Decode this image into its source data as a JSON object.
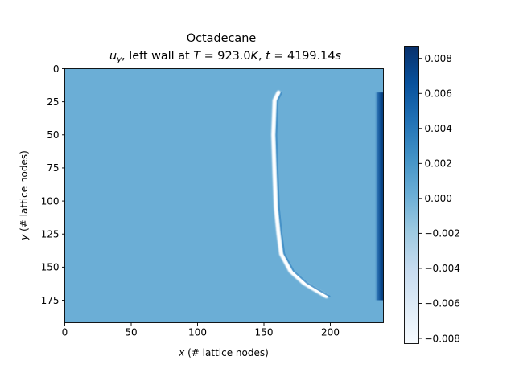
{
  "chart_data": {
    "type": "heatmap",
    "title_line1": "Octadecane",
    "title_line2": {
      "var": "u",
      "var_sub": "y",
      "mid": ", left wall at ",
      "T_sym": "T",
      "eq": " = ",
      "T_val": "923.0",
      "T_unit": "K",
      "sep": ", ",
      "t_sym": "t",
      "t_val": "4199.14",
      "t_unit": "s"
    },
    "xlabel": {
      "var": "x",
      "rest": " (# lattice nodes)"
    },
    "ylabel": {
      "var": "y",
      "rest": " (# lattice nodes)"
    },
    "x_range": [
      0,
      240
    ],
    "y_range": [
      0,
      192
    ],
    "y_inverted": true,
    "x_ticks": [
      0,
      50,
      100,
      150,
      200
    ],
    "y_ticks": [
      0,
      25,
      50,
      75,
      100,
      125,
      150,
      175
    ],
    "colorbar": {
      "colormap": "Blues",
      "min": -0.0083,
      "max": 0.0087,
      "ticks": [
        -0.008,
        -0.006,
        -0.004,
        -0.002,
        0.0,
        0.002,
        0.004,
        0.006,
        0.008
      ],
      "tick_labels": [
        "−0.008",
        "−0.006",
        "−0.004",
        "−0.002",
        "0.000",
        "0.002",
        "0.004",
        "0.006",
        "0.008"
      ]
    },
    "background_value": 0.0,
    "features": [
      {
        "name": "melt-front-downflow",
        "value": -0.008,
        "path_xy": [
          [
            161,
            18
          ],
          [
            158,
            24
          ],
          [
            157,
            50
          ],
          [
            158,
            80
          ],
          [
            159,
            105
          ],
          [
            161,
            125
          ],
          [
            163,
            140
          ],
          [
            170,
            153
          ],
          [
            180,
            162
          ],
          [
            190,
            168
          ],
          [
            197,
            172
          ]
        ]
      },
      {
        "name": "hot-wall-upflow",
        "value": 0.0085,
        "path_xy": [
          [
            237,
            18
          ],
          [
            237,
            175
          ]
        ]
      }
    ]
  }
}
